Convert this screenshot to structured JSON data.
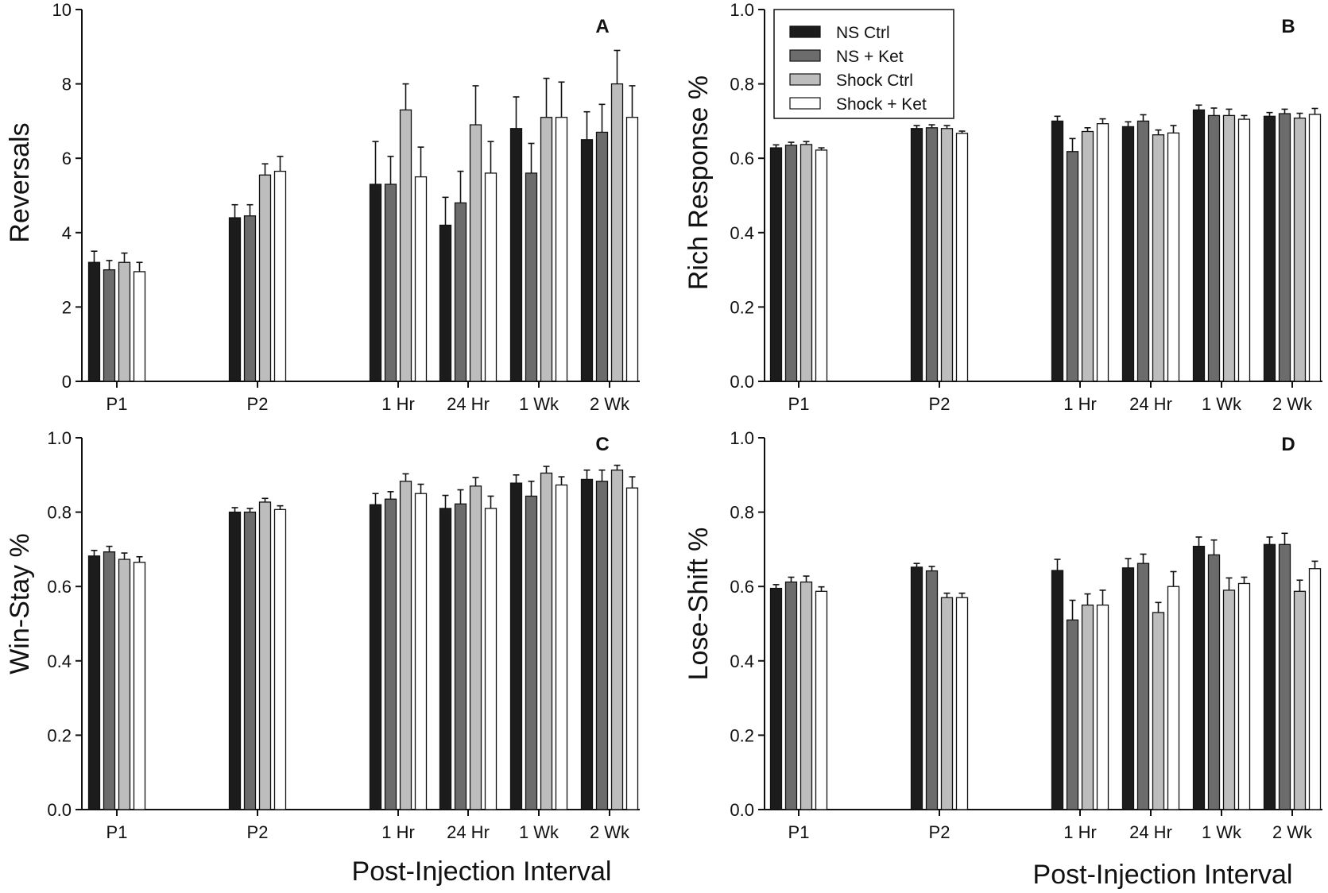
{
  "chart_data": [
    {
      "type": "bar",
      "panel": "A",
      "ylabel": "Reversals",
      "xlabel": "Post-Injection Interval",
      "ylim": [
        0,
        10
      ],
      "yticks": [
        "0",
        "2",
        "4",
        "6",
        "8",
        "10"
      ],
      "ytick_values": [
        0,
        2,
        4,
        6,
        8,
        10
      ],
      "categories": [
        "P1",
        "P2",
        "1 Hr",
        "24 Hr",
        "1 Wk",
        "2 Wk"
      ],
      "series": [
        {
          "name": "NS Ctrl",
          "values": [
            3.2,
            4.4,
            5.3,
            4.2,
            6.8,
            6.5
          ],
          "errors": [
            0.3,
            0.35,
            1.15,
            0.75,
            0.85,
            0.75
          ]
        },
        {
          "name": "NS + Ket",
          "values": [
            3.0,
            4.45,
            5.3,
            4.8,
            5.6,
            6.7
          ],
          "errors": [
            0.25,
            0.3,
            0.75,
            0.85,
            0.8,
            0.75
          ]
        },
        {
          "name": "Shock Ctrl",
          "values": [
            3.2,
            5.55,
            7.3,
            6.9,
            7.1,
            8.0
          ],
          "errors": [
            0.25,
            0.3,
            0.7,
            1.05,
            1.05,
            0.9
          ]
        },
        {
          "name": "Shock + Ket",
          "values": [
            2.95,
            5.65,
            5.5,
            5.6,
            7.1,
            7.1
          ],
          "errors": [
            0.25,
            0.4,
            0.8,
            0.85,
            0.95,
            0.85
          ]
        }
      ]
    },
    {
      "type": "bar",
      "panel": "B",
      "ylabel": "Rich Response %",
      "xlabel": "Post-Injection Interval",
      "ylim": [
        0,
        1
      ],
      "yticks": [
        "0.0",
        "0.2",
        "0.4",
        "0.6",
        "0.8",
        "1.0"
      ],
      "ytick_values": [
        0,
        0.2,
        0.4,
        0.6,
        0.8,
        1.0
      ],
      "categories": [
        "P1",
        "P2",
        "1 Hr",
        "24 Hr",
        "1 Wk",
        "2 Wk"
      ],
      "series": [
        {
          "name": "NS Ctrl",
          "values": [
            0.628,
            0.68,
            0.7,
            0.685,
            0.73,
            0.713
          ],
          "errors": [
            0.008,
            0.008,
            0.013,
            0.013,
            0.013,
            0.01
          ]
        },
        {
          "name": "NS + Ket",
          "values": [
            0.635,
            0.682,
            0.618,
            0.7,
            0.715,
            0.72
          ],
          "errors": [
            0.008,
            0.008,
            0.035,
            0.017,
            0.02,
            0.012
          ]
        },
        {
          "name": "Shock Ctrl",
          "values": [
            0.637,
            0.68,
            0.672,
            0.663,
            0.715,
            0.708
          ],
          "errors": [
            0.008,
            0.008,
            0.01,
            0.013,
            0.017,
            0.013
          ]
        },
        {
          "name": "Shock + Ket",
          "values": [
            0.622,
            0.667,
            0.693,
            0.668,
            0.705,
            0.718
          ],
          "errors": [
            0.006,
            0.006,
            0.013,
            0.02,
            0.01,
            0.016
          ]
        }
      ],
      "legend": {
        "position": "top-left",
        "entries": [
          "NS Ctrl",
          "NS + Ket",
          "Shock Ctrl",
          "Shock + Ket"
        ]
      }
    },
    {
      "type": "bar",
      "panel": "C",
      "ylabel": "Win-Stay %",
      "xlabel": "",
      "ylim": [
        0,
        1
      ],
      "yticks": [
        "0.0",
        "0.2",
        "0.4",
        "0.6",
        "0.8",
        "1.0"
      ],
      "ytick_values": [
        0,
        0.2,
        0.4,
        0.6,
        0.8,
        1.0
      ],
      "categories": [
        "P1",
        "P2",
        "1 Hr",
        "24 Hr",
        "1 Wk",
        "2 Wk"
      ],
      "series": [
        {
          "name": "NS Ctrl",
          "values": [
            0.682,
            0.8,
            0.82,
            0.81,
            0.878,
            0.888
          ],
          "errors": [
            0.015,
            0.012,
            0.03,
            0.035,
            0.022,
            0.025
          ]
        },
        {
          "name": "NS + Ket",
          "values": [
            0.693,
            0.8,
            0.835,
            0.822,
            0.843,
            0.883
          ],
          "errors": [
            0.015,
            0.01,
            0.02,
            0.038,
            0.04,
            0.03
          ]
        },
        {
          "name": "Shock Ctrl",
          "values": [
            0.673,
            0.827,
            0.883,
            0.87,
            0.905,
            0.913
          ],
          "errors": [
            0.017,
            0.01,
            0.02,
            0.023,
            0.018,
            0.013
          ]
        },
        {
          "name": "Shock + Ket",
          "values": [
            0.665,
            0.807,
            0.85,
            0.81,
            0.873,
            0.865
          ],
          "errors": [
            0.015,
            0.01,
            0.025,
            0.033,
            0.022,
            0.03
          ]
        }
      ]
    },
    {
      "type": "bar",
      "panel": "D",
      "ylabel": "Lose-Shift %",
      "xlabel": "Post-Injection Interval",
      "ylim": [
        0,
        1
      ],
      "yticks": [
        "0.0",
        "0.2",
        "0.4",
        "0.6",
        "0.8",
        "1.0"
      ],
      "ytick_values": [
        0,
        0.2,
        0.4,
        0.6,
        0.8,
        1.0
      ],
      "categories": [
        "P1",
        "P2",
        "1 Hr",
        "24 Hr",
        "1 Wk",
        "2 Wk"
      ],
      "series": [
        {
          "name": "NS Ctrl",
          "values": [
            0.595,
            0.652,
            0.643,
            0.65,
            0.708,
            0.713
          ],
          "errors": [
            0.01,
            0.01,
            0.03,
            0.025,
            0.025,
            0.02
          ]
        },
        {
          "name": "NS + Ket",
          "values": [
            0.612,
            0.642,
            0.51,
            0.662,
            0.685,
            0.713
          ],
          "errors": [
            0.013,
            0.012,
            0.053,
            0.025,
            0.04,
            0.03
          ]
        },
        {
          "name": "Shock Ctrl",
          "values": [
            0.612,
            0.57,
            0.55,
            0.53,
            0.59,
            0.587
          ],
          "errors": [
            0.016,
            0.012,
            0.03,
            0.027,
            0.033,
            0.03
          ]
        },
        {
          "name": "Shock + Ket",
          "values": [
            0.587,
            0.57,
            0.55,
            0.6,
            0.608,
            0.648
          ],
          "errors": [
            0.012,
            0.012,
            0.04,
            0.04,
            0.017,
            0.02
          ]
        }
      ]
    }
  ],
  "series_colors": [
    "#1c1c1c",
    "#6c6c6c",
    "#bdbdbd",
    "#ffffff"
  ]
}
